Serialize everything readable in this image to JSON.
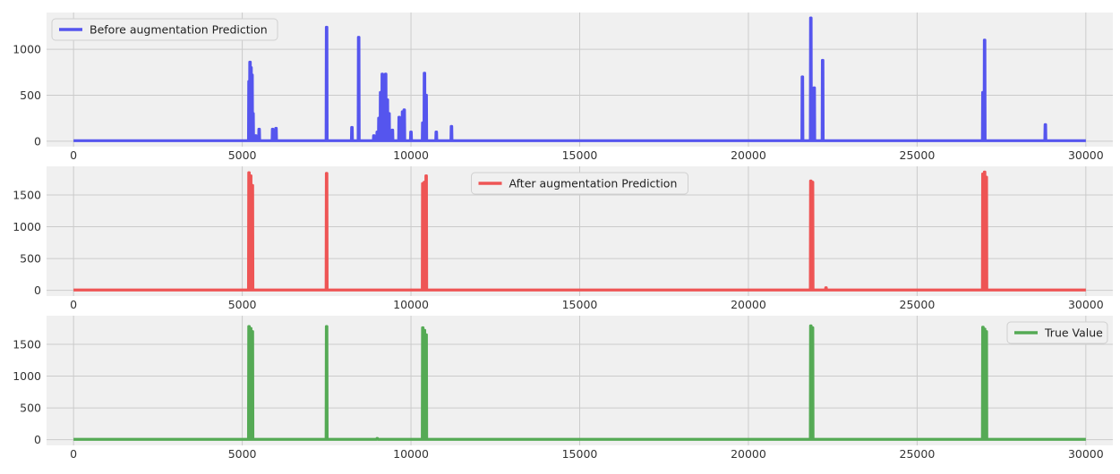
{
  "chart_data": [
    {
      "type": "line",
      "legend": "Before augmentation Prediction",
      "legend_position": "upper-left",
      "color": "#5555ee",
      "xlim": [
        -800,
        30800
      ],
      "ylim": [
        -60,
        1400
      ],
      "xticks": [
        0,
        5000,
        10000,
        15000,
        20000,
        25000,
        30000
      ],
      "yticks": [
        0,
        500,
        1000
      ],
      "grid": true,
      "baseline": 5,
      "spikes": [
        [
          5200,
          650
        ],
        [
          5230,
          860
        ],
        [
          5260,
          800
        ],
        [
          5290,
          720
        ],
        [
          5320,
          300
        ],
        [
          5400,
          60
        ],
        [
          5500,
          130
        ],
        [
          5900,
          130
        ],
        [
          6000,
          140
        ],
        [
          7500,
          1240
        ],
        [
          8250,
          150
        ],
        [
          8450,
          1130
        ],
        [
          8900,
          60
        ],
        [
          9000,
          100
        ],
        [
          9050,
          250
        ],
        [
          9100,
          530
        ],
        [
          9150,
          730
        ],
        [
          9200,
          600
        ],
        [
          9250,
          730
        ],
        [
          9300,
          450
        ],
        [
          9350,
          300
        ],
        [
          9450,
          120
        ],
        [
          9650,
          260
        ],
        [
          9750,
          320
        ],
        [
          9800,
          340
        ],
        [
          10000,
          100
        ],
        [
          10350,
          200
        ],
        [
          10400,
          740
        ],
        [
          10450,
          500
        ],
        [
          10750,
          100
        ],
        [
          11200,
          160
        ],
        [
          21600,
          700
        ],
        [
          21850,
          1340
        ],
        [
          21950,
          580
        ],
        [
          22200,
          880
        ],
        [
          26950,
          530
        ],
        [
          27000,
          1100
        ],
        [
          28800,
          180
        ]
      ]
    },
    {
      "type": "line",
      "legend": "After augmentation Prediction",
      "legend_position": "upper-center",
      "color": "#ee5555",
      "xlim": [
        -800,
        30800
      ],
      "ylim": [
        -90,
        1950
      ],
      "xticks": [
        0,
        5000,
        10000,
        15000,
        20000,
        25000,
        30000
      ],
      "yticks": [
        0,
        500,
        1000,
        1500
      ],
      "grid": true,
      "baseline": 5,
      "spikes": [
        [
          5200,
          1850
        ],
        [
          5250,
          1800
        ],
        [
          5300,
          1650
        ],
        [
          7500,
          1840
        ],
        [
          10350,
          1680
        ],
        [
          10400,
          1700
        ],
        [
          10450,
          1800
        ],
        [
          21850,
          1720
        ],
        [
          21900,
          1700
        ],
        [
          22300,
          40
        ],
        [
          26950,
          1830
        ],
        [
          27000,
          1860
        ],
        [
          27050,
          1780
        ]
      ]
    },
    {
      "type": "line",
      "legend": "True Value",
      "legend_position": "upper-right",
      "color": "#55aa55",
      "xlim": [
        -800,
        30800
      ],
      "ylim": [
        -90,
        1950
      ],
      "xticks": [
        0,
        5000,
        10000,
        15000,
        20000,
        25000,
        30000
      ],
      "yticks": [
        0,
        500,
        1000,
        1500
      ],
      "grid": true,
      "baseline": 5,
      "spikes": [
        [
          5200,
          1780
        ],
        [
          5250,
          1750
        ],
        [
          5300,
          1700
        ],
        [
          7500,
          1780
        ],
        [
          9000,
          20
        ],
        [
          10350,
          1760
        ],
        [
          10400,
          1720
        ],
        [
          10450,
          1650
        ],
        [
          21850,
          1790
        ],
        [
          21900,
          1760
        ],
        [
          26950,
          1770
        ],
        [
          27000,
          1740
        ],
        [
          27050,
          1700
        ]
      ]
    }
  ]
}
